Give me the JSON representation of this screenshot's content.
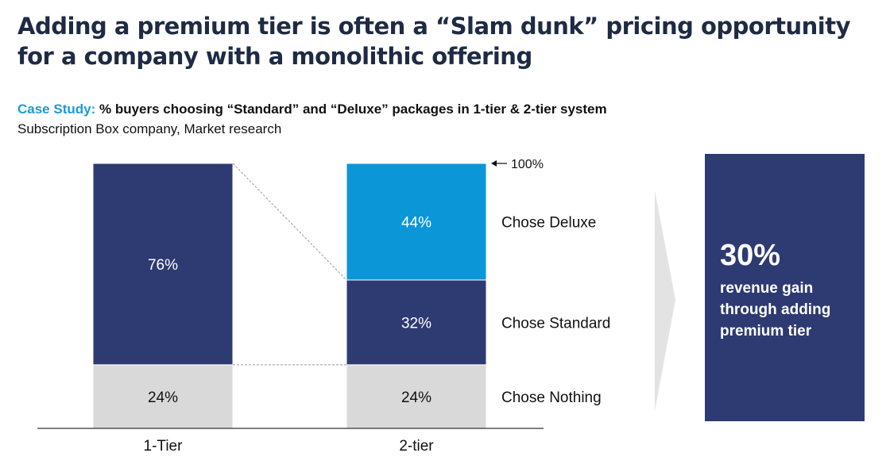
{
  "title_lines": [
    "Adding a premium tier is often a “Slam dunk” pricing opportunity",
    "for a company with a monolithic offering"
  ],
  "subtitle": {
    "prefix": "Case Study:",
    "text": "% buyers choosing “Standard” and “Deluxe” packages in 1-tier & 2-tier system"
  },
  "source": "Subscription Box company, Market research",
  "colors": {
    "navy": "#2e3a72",
    "light_blue": "#0b96d8",
    "gray": "#d9d9d9",
    "accent": "#1c9ad6"
  },
  "chart_data": {
    "type": "bar",
    "stacked": true,
    "categories": [
      "1-Tier",
      "2-tier"
    ],
    "series": [
      {
        "name": "Chose Nothing",
        "values": [
          24,
          24
        ],
        "color": "#d9d9d9",
        "label_color": "#111111",
        "labels": [
          "24%",
          "24%"
        ]
      },
      {
        "name": "Chose Standard",
        "values": [
          76,
          32
        ],
        "color": "#2e3a72",
        "label_color": "#ffffff",
        "labels": [
          "76%",
          "32%"
        ]
      },
      {
        "name": "Chose Deluxe",
        "values": [
          0,
          44
        ],
        "color": "#0b96d8",
        "label_color": "#ffffff",
        "labels": [
          "",
          "44%"
        ]
      }
    ],
    "ylim": [
      0,
      100
    ],
    "total_annotation": "100%",
    "legend_placement": "right of 2-tier bar"
  },
  "callout": {
    "value": "30%",
    "text": "revenue gain through adding premium tier"
  }
}
